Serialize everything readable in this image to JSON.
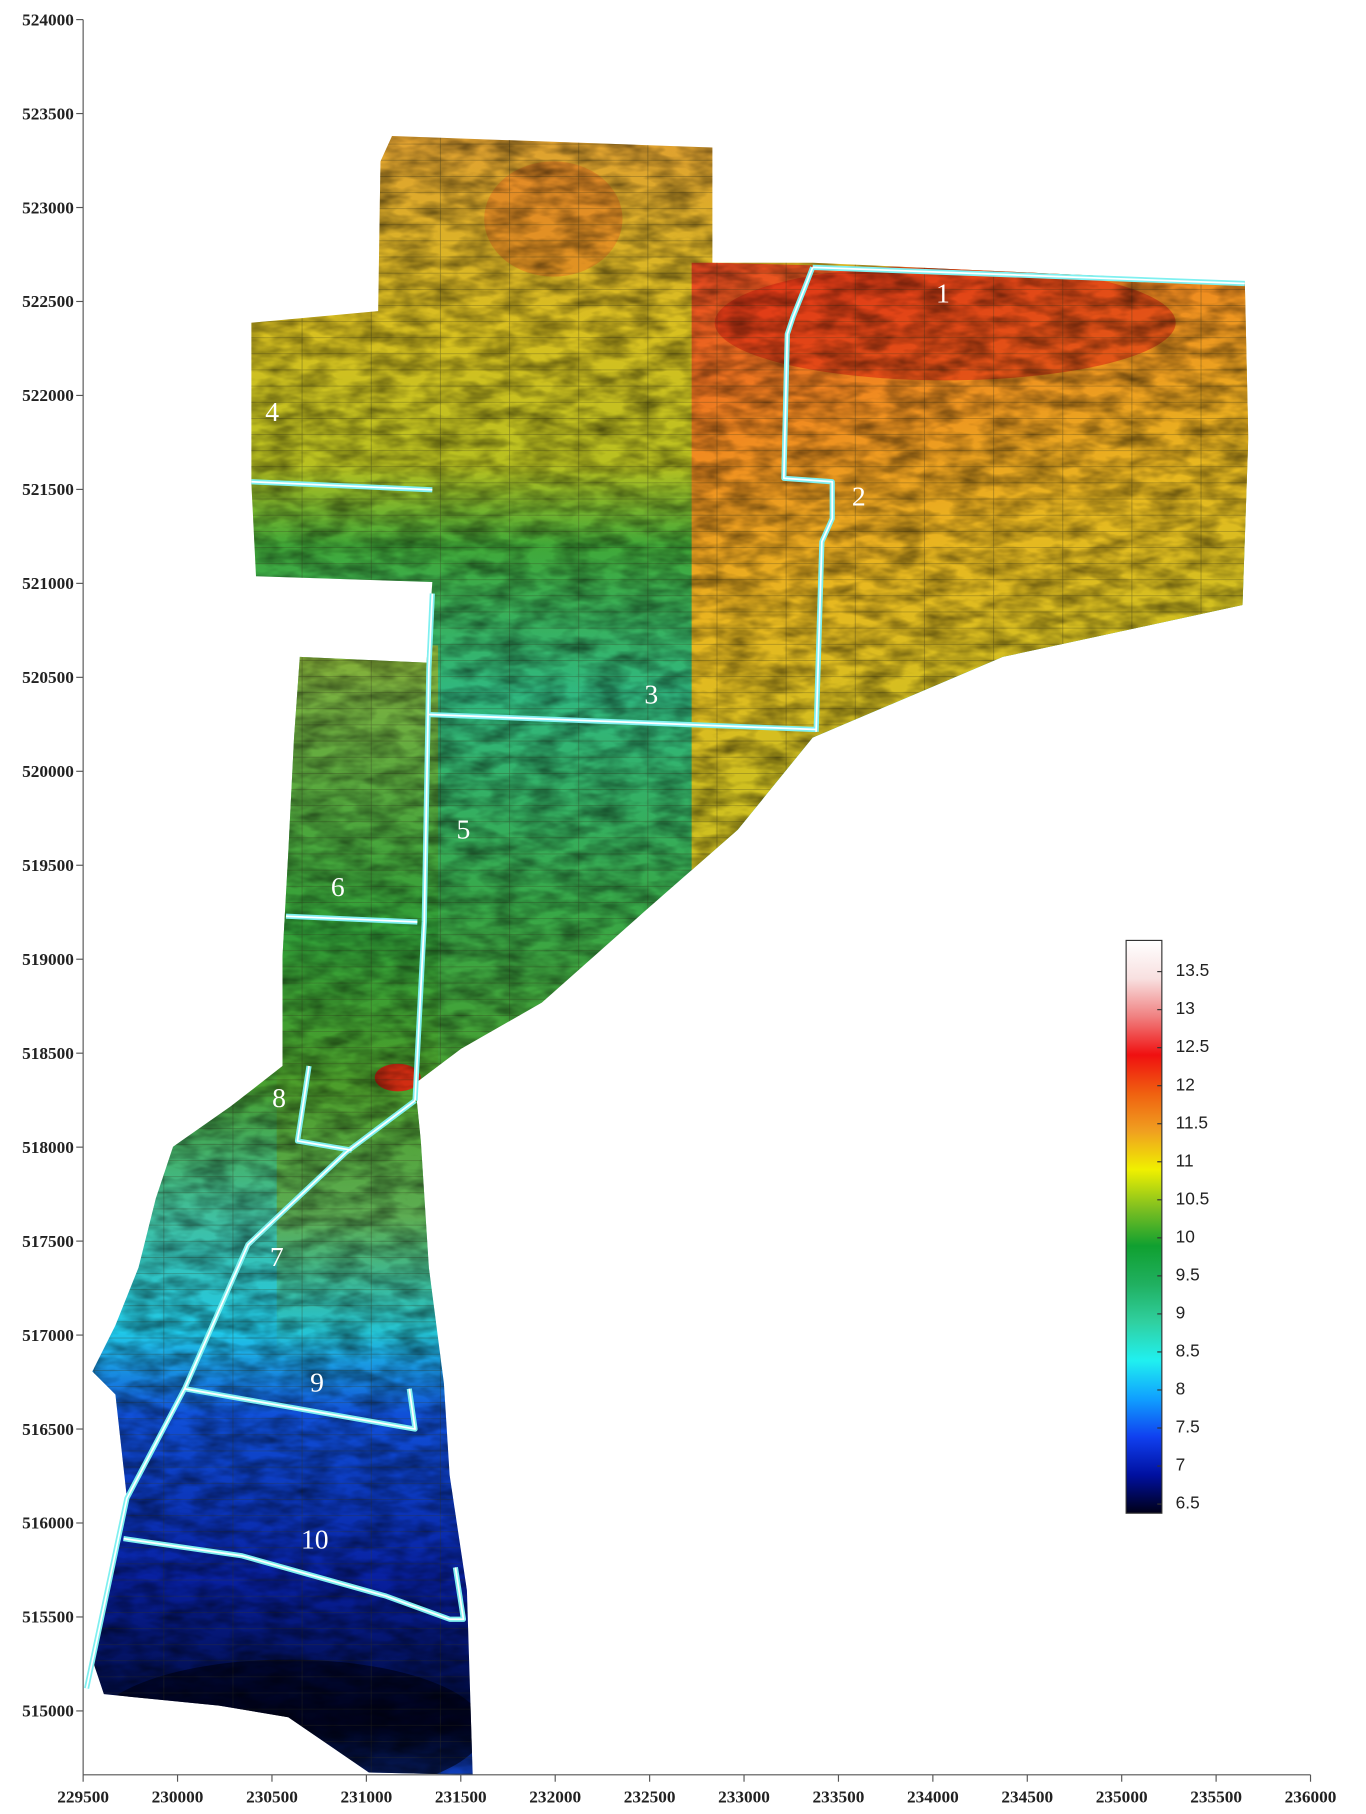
{
  "map": {
    "xlim": [
      229500,
      236000
    ],
    "ylim": [
      514660,
      524000
    ],
    "xticks": [
      229500,
      230000,
      230500,
      231000,
      231500,
      232000,
      232500,
      233000,
      233500,
      234000,
      234500,
      235000,
      235500,
      236000
    ],
    "yticks": [
      515000,
      515500,
      516000,
      516500,
      517000,
      517500,
      518000,
      518500,
      519000,
      519500,
      520000,
      520500,
      521000,
      521500,
      522000,
      522500,
      523000,
      523500,
      524000
    ],
    "colorbar": {
      "lim": [
        6.38,
        13.91
      ],
      "ticks": [
        6.5,
        7,
        7.5,
        8,
        8.5,
        9,
        9.5,
        10,
        10.5,
        11,
        11.5,
        12,
        12.5,
        13,
        13.5
      ],
      "colors": [
        "#000018",
        "#0010a0",
        "#1040f0",
        "#10a0ff",
        "#20f0f0",
        "#30d0a0",
        "#20b060",
        "#10a030",
        "#80c020",
        "#f0f000",
        "#f0a020",
        "#f06010",
        "#f01010",
        "#f08080",
        "#f8e0e0",
        "#ffffff"
      ]
    },
    "regions": [
      "1",
      "2",
      "3",
      "4",
      "5",
      "6",
      "7",
      "8",
      "9",
      "10"
    ]
  }
}
